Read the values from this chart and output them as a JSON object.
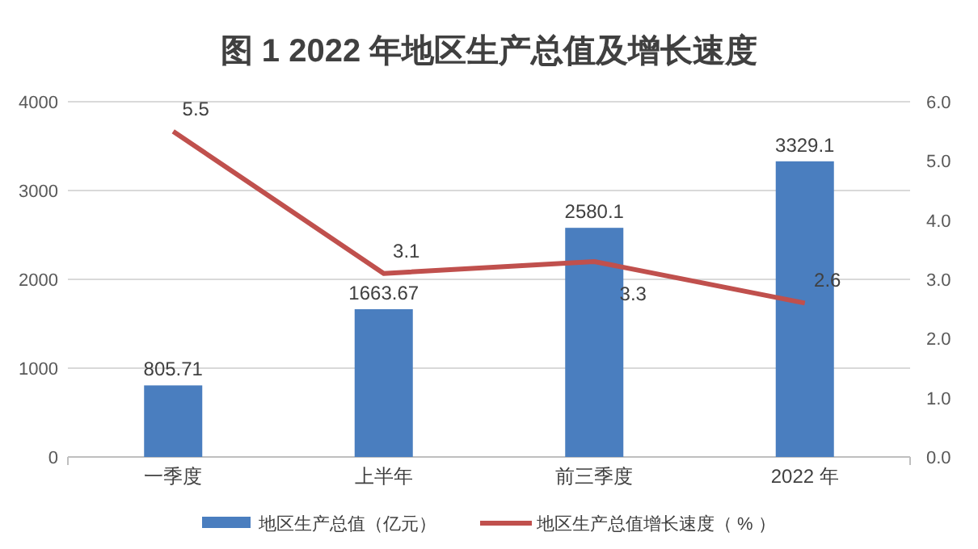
{
  "chart_data": {
    "type": "bar",
    "title": "图 1  2022 年地区生产总值及增长速度",
    "categories": [
      "一季度",
      "上半年",
      "前三季度",
      "2022 年"
    ],
    "series": [
      {
        "name": "地区生产总值（亿元）",
        "color": "#4a7ebf",
        "values": [
          805.71,
          1663.67,
          2580.1,
          3329.1
        ]
      },
      {
        "name": "地区生产总值增长速度（ % ）",
        "type": "line",
        "axis": "y2",
        "color": "#c0504d",
        "values": [
          5.5,
          3.1,
          3.3,
          2.6
        ]
      }
    ],
    "ylim": [
      0,
      4000
    ],
    "yticks": [
      0,
      1000,
      2000,
      3000,
      4000
    ],
    "y2lim": [
      0,
      6
    ],
    "y2ticks": [
      {
        "value": 0,
        "label": "0.0"
      },
      {
        "value": 1,
        "label": "1.0"
      },
      {
        "value": 2,
        "label": "2.0"
      },
      {
        "value": 3,
        "label": "3.0"
      },
      {
        "value": 4,
        "label": "4.0"
      },
      {
        "value": 5,
        "label": "5.0"
      },
      {
        "value": 6,
        "label": "6.0"
      }
    ],
    "grid": "y",
    "legend": "bottom",
    "data_labels": true
  }
}
